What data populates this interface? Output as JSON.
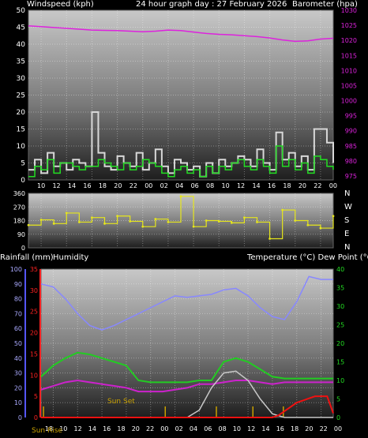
{
  "header": {
    "left_label": "Windspeed (kph)",
    "center_label": "24 hour graph day : 27 February 2026",
    "right_label": "Barometer (hpa)"
  },
  "lower_header": {
    "rain_label": "Rainfall (mm)",
    "humidity_label": "Humidity",
    "right_label": "Temperature (°C) Dew Point (°C)"
  },
  "direction_letters": [
    "N",
    "W",
    "S",
    "E",
    "N"
  ],
  "annotations": {
    "sunset": "Sun Set",
    "sunrise": "Sun Rise"
  },
  "colors": {
    "windspeed": "#d8d8d8",
    "gust_green": "#22dd22",
    "barometer": "#dd22dd",
    "direction": "#e6e61c",
    "humidity": "#8888ff",
    "temperature": "#22cc22",
    "dewpoint": "#cc22cc",
    "rainfall": "#ee1111",
    "solar": "#c8c8c8",
    "sun_marker": "#c8a000",
    "left_axis_rain": "#ff2222",
    "left_axis_humidity": "#5555ff",
    "right_axis_temp": "#22dd22"
  },
  "chart_data": [
    {
      "type": "line",
      "title": "24 hour graph day : 27 February 2026",
      "x_ticks": [
        "10",
        "12",
        "14",
        "16",
        "18",
        "20",
        "22",
        "00",
        "02",
        "04",
        "06",
        "08",
        "10",
        "12",
        "14",
        "16",
        "18",
        "20",
        "22",
        "00"
      ],
      "xlim_hours": [
        9,
        33
      ],
      "ylabel_left": "Windspeed (kph)",
      "ylim_left": [
        0,
        50
      ],
      "yticks_left": [
        "0",
        "5",
        "10",
        "15",
        "20",
        "25",
        "30",
        "35",
        "40",
        "45",
        "50"
      ],
      "ylabel_right": "Barometer (hpa)",
      "ylim_right": [
        970,
        1030
      ],
      "yticks_right": [
        "975",
        "980",
        "985",
        "990",
        "995",
        "1000",
        "1005",
        "1010",
        "1015",
        "1020",
        "1025",
        "1030"
      ],
      "grid": true,
      "series": [
        {
          "name": "Windspeed",
          "x": [
            9,
            9.5,
            10,
            10.5,
            11,
            11.5,
            12,
            12.5,
            13,
            13.5,
            14,
            14.5,
            15,
            15.5,
            16,
            16.5,
            17,
            17.5,
            18,
            18.5,
            19,
            19.5,
            20,
            20.5,
            21,
            21.5,
            22,
            22.5,
            23,
            23.5,
            24,
            24.5,
            25,
            25.5,
            26,
            26.5,
            27,
            27.5,
            28,
            28.5,
            29,
            29.5,
            30,
            30.5,
            31,
            31.5,
            32,
            32.5,
            33
          ],
          "values": [
            3,
            6,
            2,
            8,
            4,
            5,
            3,
            6,
            5,
            4,
            20,
            8,
            4,
            3,
            7,
            5,
            4,
            8,
            3,
            5,
            9,
            4,
            2,
            6,
            5,
            3,
            4,
            1,
            5,
            2,
            6,
            4,
            5,
            7,
            6,
            4,
            9,
            5,
            3,
            14,
            6,
            8,
            4,
            7,
            3,
            15,
            15,
            11,
            5
          ]
        },
        {
          "name": "Gust",
          "x": [
            9,
            9.5,
            10,
            10.5,
            11,
            11.5,
            12,
            12.5,
            13,
            13.5,
            14,
            14.5,
            15,
            15.5,
            16,
            16.5,
            17,
            17.5,
            18,
            18.5,
            19,
            19.5,
            20,
            20.5,
            21,
            21.5,
            22,
            22.5,
            23,
            23.5,
            24,
            24.5,
            25,
            25.5,
            26,
            26.5,
            27,
            27.5,
            28,
            28.5,
            29,
            29.5,
            30,
            30.5,
            31,
            31.5,
            32,
            32.5,
            33
          ],
          "values": [
            1,
            4,
            3,
            6,
            2,
            5,
            5,
            4,
            3,
            4,
            4,
            6,
            5,
            4,
            3,
            5,
            3,
            4,
            6,
            5,
            4,
            2,
            1,
            3,
            4,
            2,
            3,
            1,
            4,
            2,
            4,
            3,
            5,
            6,
            4,
            3,
            6,
            4,
            2,
            10,
            4,
            6,
            3,
            5,
            2,
            7,
            6,
            4,
            3
          ]
        },
        {
          "name": "Barometer",
          "axis": "right",
          "x": [
            9,
            10,
            11,
            12,
            13,
            14,
            15,
            16,
            17,
            18,
            19,
            20,
            21,
            22,
            23,
            24,
            25,
            26,
            27,
            28,
            29,
            30,
            31,
            32,
            33
          ],
          "values": [
            1024.5,
            1024.2,
            1023.9,
            1023.6,
            1023.3,
            1023.0,
            1022.9,
            1022.8,
            1022.6,
            1022.4,
            1022.6,
            1023.0,
            1022.8,
            1022.3,
            1021.8,
            1021.5,
            1021.3,
            1021.0,
            1020.7,
            1020.2,
            1019.5,
            1019.0,
            1019.2,
            1019.8,
            1020.1
          ]
        }
      ]
    },
    {
      "type": "scatter",
      "ylabel_right": "N W S E N",
      "ylim": [
        0,
        360
      ],
      "yticks": [
        "0",
        "90",
        "180",
        "270",
        "360"
      ],
      "series": [
        {
          "name": "Wind direction",
          "x": [
            9,
            10,
            11,
            12,
            13,
            14,
            15,
            16,
            17,
            18,
            19,
            20,
            21,
            22,
            23,
            24,
            25,
            26,
            27,
            28,
            29,
            30,
            31,
            32,
            33
          ],
          "values": [
            150,
            185,
            160,
            230,
            170,
            200,
            160,
            210,
            175,
            140,
            190,
            170,
            340,
            140,
            180,
            175,
            165,
            200,
            170,
            60,
            250,
            180,
            150,
            130,
            210
          ]
        }
      ]
    },
    {
      "type": "line",
      "x_ticks": [
        "18",
        "10",
        "12",
        "14",
        "16",
        "18",
        "20",
        "22",
        "00",
        "02",
        "04",
        "06",
        "08",
        "10",
        "12",
        "14",
        "16",
        "18",
        "20",
        "22",
        "00"
      ],
      "ylabel_left": "Rainfall (mm)",
      "ylim_left_rain": [
        0,
        35
      ],
      "yticks_left_rain": [
        "0",
        "5",
        "10",
        "15",
        "20",
        "25",
        "30",
        "35"
      ],
      "ylabel_left2": "Humidity",
      "ylim_left_humidity": [
        0,
        100
      ],
      "yticks_left_humidity": [
        "0",
        "10",
        "20",
        "30",
        "40",
        "50",
        "60",
        "70",
        "80",
        "90",
        "100"
      ],
      "ylabel_right": "Temperature (°C) Dew Point (°C)",
      "ylim_right": [
        0,
        40
      ],
      "yticks_right": [
        "0",
        "5",
        "10",
        "15",
        "20",
        "25",
        "30",
        "35",
        "40"
      ],
      "grid": true,
      "series": [
        {
          "name": "Humidity",
          "axis": "humidity",
          "x": [
            9,
            10,
            11,
            12,
            13,
            14,
            15,
            16,
            17,
            18,
            19,
            20,
            21,
            22,
            23,
            24,
            25,
            26,
            27,
            28,
            29,
            30,
            31,
            32,
            33
          ],
          "values": [
            90,
            88,
            80,
            70,
            62,
            59,
            62,
            66,
            70,
            74,
            78,
            82,
            81,
            82,
            83,
            86,
            87,
            82,
            74,
            68,
            66,
            78,
            95,
            93,
            93
          ]
        },
        {
          "name": "Temperature",
          "axis": "right",
          "x": [
            9,
            10,
            11,
            12,
            13,
            14,
            15,
            16,
            17,
            18,
            19,
            20,
            21,
            22,
            23,
            24,
            25,
            26,
            27,
            28,
            29,
            30,
            31,
            32,
            33
          ],
          "values": [
            11,
            14,
            16,
            17.5,
            17,
            16,
            15,
            14,
            10,
            9.5,
            9.5,
            9.5,
            9.5,
            10,
            10,
            15,
            16,
            15,
            13,
            11,
            10.5,
            10.5,
            10.5,
            10.5,
            10.5
          ]
        },
        {
          "name": "Dew Point",
          "axis": "right",
          "x": [
            9,
            10,
            11,
            12,
            13,
            14,
            15,
            16,
            17,
            18,
            19,
            20,
            21,
            22,
            23,
            24,
            25,
            26,
            27,
            28,
            29,
            30,
            31,
            32,
            33
          ],
          "values": [
            7.5,
            8.5,
            9.5,
            10,
            9.5,
            9,
            8.5,
            8,
            7,
            7,
            7,
            7.5,
            8,
            9,
            9,
            9.5,
            10,
            10,
            9.5,
            9,
            9.5,
            9.5,
            9.5,
            9.5,
            9.5
          ]
        },
        {
          "name": "Solar",
          "axis": "right",
          "x": [
            9,
            10,
            11,
            12,
            13,
            14,
            15,
            16,
            17,
            18,
            19,
            20,
            21,
            22,
            23,
            24,
            25,
            26,
            27,
            28,
            29,
            30,
            31,
            32,
            33
          ],
          "values": [
            0,
            0,
            0,
            0,
            0,
            0,
            0,
            0,
            0,
            0,
            0,
            0,
            0,
            2,
            8,
            12,
            12.5,
            10,
            5,
            1,
            0,
            0,
            0,
            0,
            0
          ]
        },
        {
          "name": "Rainfall",
          "axis": "rain",
          "x": [
            9,
            26,
            27,
            28,
            28.5,
            29,
            29.5,
            30,
            30.5,
            31,
            31.5,
            32,
            32.5,
            33
          ],
          "values": [
            0,
            0,
            0,
            0,
            0.5,
            1.5,
            2.5,
            3.5,
            4,
            4.5,
            5,
            5,
            5,
            1
          ]
        }
      ]
    }
  ]
}
